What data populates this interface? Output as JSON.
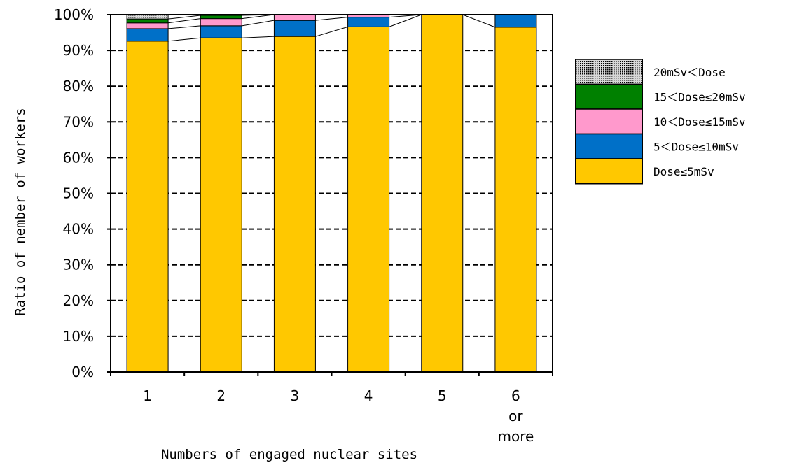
{
  "chart_data": {
    "type": "bar",
    "stacked": true,
    "percent_stacked": true,
    "title": "",
    "xlabel": "Numbers of engaged nuclear sites",
    "ylabel": "Ratio of nember of workers",
    "ylim": [
      0,
      100
    ],
    "yticks": [
      "0%",
      "10%",
      "20%",
      "30%",
      "40%",
      "50%",
      "60%",
      "70%",
      "80%",
      "90%",
      "100%"
    ],
    "categories": [
      "1",
      "2",
      "3",
      "4",
      "5",
      "6 or more"
    ],
    "category_lines": [
      [
        "1"
      ],
      [
        "2"
      ],
      [
        "3"
      ],
      [
        "4"
      ],
      [
        "5"
      ],
      [
        "6",
        "or",
        "more"
      ]
    ],
    "grid": "horizontal dashed",
    "legend_position": "right",
    "series_lines": "connecting lines between stack boundaries",
    "series": [
      {
        "name": "Dose≤5mSv",
        "color": "#ffc800",
        "values": [
          92.6,
          93.5,
          93.9,
          96.6,
          100.0,
          96.5
        ]
      },
      {
        "name": "5＜Dose≤10mSv",
        "color": "#0070c8",
        "values": [
          3.5,
          3.4,
          4.5,
          2.7,
          0.0,
          3.5
        ]
      },
      {
        "name": "10＜Dose≤15mSv",
        "color": "#ff99cc",
        "values": [
          1.6,
          2.0,
          1.6,
          0.7,
          0.0,
          0.0
        ]
      },
      {
        "name": "15＜Dose≤20mSv",
        "color": "#008000",
        "values": [
          1.1,
          0.9,
          0.0,
          0.0,
          0.0,
          0.0
        ]
      },
      {
        "name": "20mSv＜Dose",
        "color": "#999999",
        "pattern": "dotted",
        "values": [
          1.2,
          0.2,
          0.0,
          0.0,
          0.0,
          0.0
        ]
      }
    ],
    "legend_order": [
      "20mSv＜Dose",
      "15＜Dose≤20mSv",
      "10＜Dose≤15mSv",
      "5＜Dose≤10mSv",
      "Dose≤5mSv"
    ]
  }
}
